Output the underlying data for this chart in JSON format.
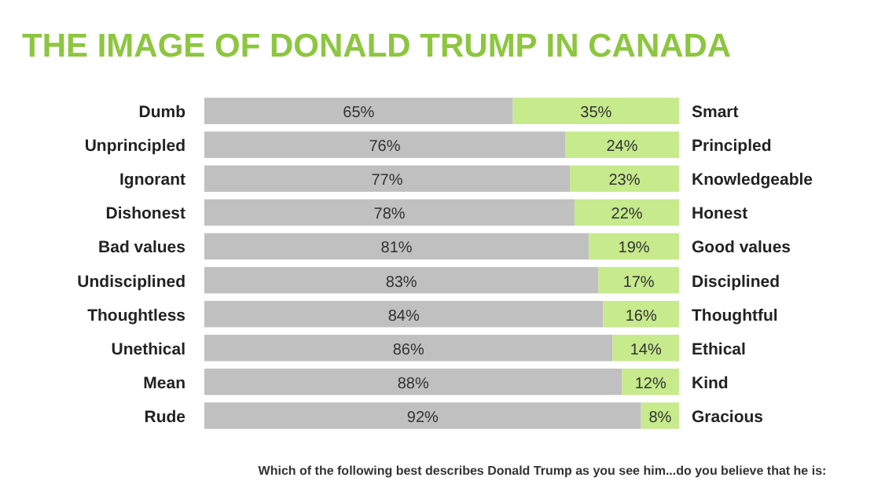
{
  "chart_data": {
    "type": "bar",
    "orientation": "horizontal",
    "stacked": true,
    "title": "THE IMAGE OF DONALD TRUMP IN CANADA",
    "categories": [
      "Dumb",
      "Unprincipled",
      "Ignorant",
      "Dishonest",
      "Bad values",
      "Undisciplined",
      "Thoughtless",
      "Unethical",
      "Mean",
      "Rude"
    ],
    "series": [
      {
        "color": "#c0c0c0",
        "values": [
          65,
          76,
          77,
          78,
          81,
          83,
          84,
          86,
          88,
          92
        ],
        "value_labels": [
          "65%",
          "76%",
          "77%",
          "78%",
          "81%",
          "83%",
          "84%",
          "86%",
          "88%",
          "92%"
        ]
      },
      {
        "color": "#c6ea8c",
        "values": [
          35,
          24,
          23,
          22,
          19,
          17,
          16,
          14,
          12,
          8
        ],
        "value_labels": [
          "35%",
          "24%",
          "23%",
          "22%",
          "19%",
          "17%",
          "16%",
          "14%",
          "12%",
          "8%"
        ]
      }
    ],
    "xlim": [
      0,
      100
    ],
    "tick_labels": false,
    "annotations": [
      "Smart",
      "Principled",
      "Knowledgeable",
      "Honest",
      "Good values",
      "Disciplined",
      "Thoughtful",
      "Ethical",
      "Kind",
      "Gracious",
      "Which of the following best describes  Donald Trump as you see him...do you believe that he is:"
    ]
  }
}
